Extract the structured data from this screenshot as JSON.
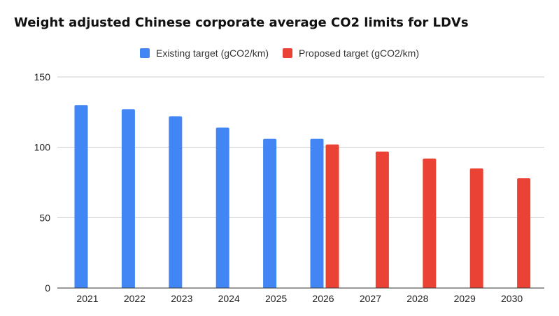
{
  "chart_data": {
    "type": "bar",
    "title": "Weight adjusted Chinese corporate average CO2 limits for LDVs",
    "xlabel": "",
    "ylabel": "",
    "ylim": [
      0,
      150
    ],
    "yticks": [
      0,
      50,
      100,
      150
    ],
    "categories": [
      "2021",
      "2022",
      "2023",
      "2024",
      "2025",
      "2026",
      "2027",
      "2028",
      "2029",
      "2030"
    ],
    "series": [
      {
        "name": "Existing target (gCO2/km)",
        "color": "#4285f4",
        "values": [
          130,
          127,
          122,
          114,
          106,
          106,
          null,
          null,
          null,
          null
        ]
      },
      {
        "name": "Proposed target (gCO2/km)",
        "color": "#ea4335",
        "values": [
          null,
          null,
          null,
          null,
          null,
          102,
          97,
          92,
          85,
          78
        ]
      }
    ],
    "legend_position": "top-center",
    "grid": true
  }
}
